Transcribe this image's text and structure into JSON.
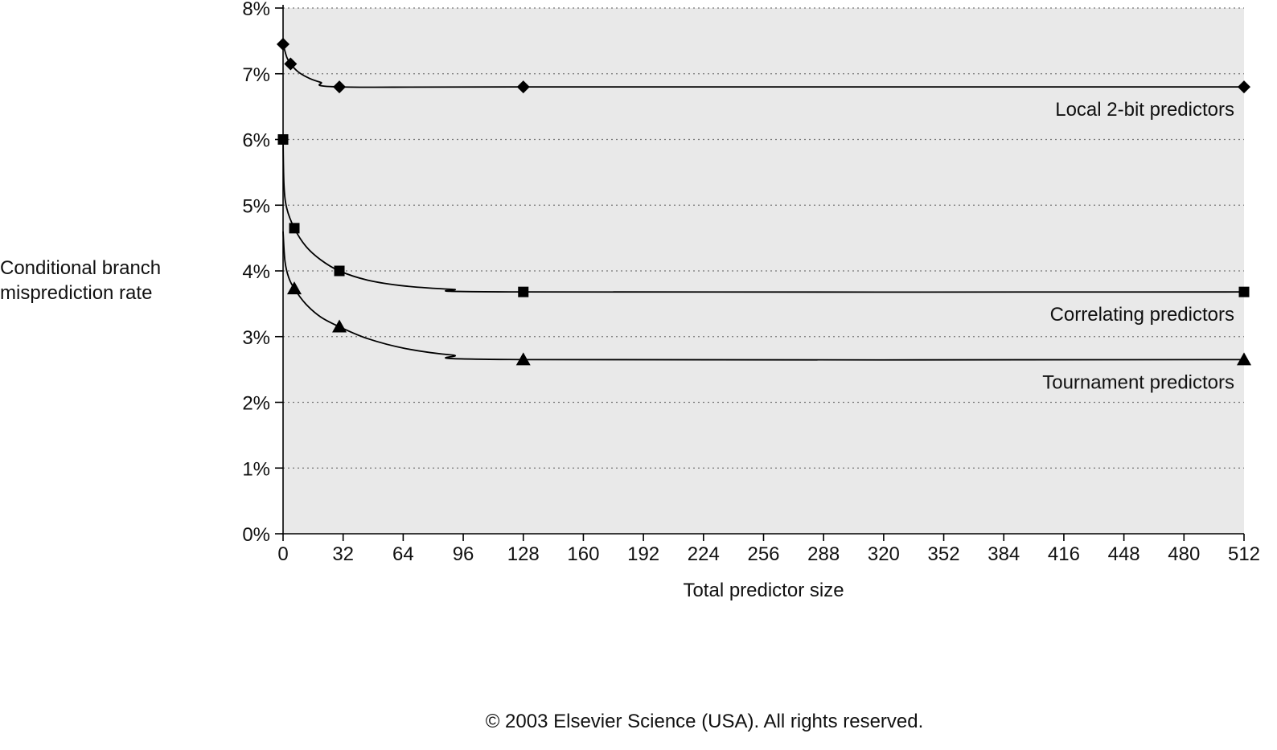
{
  "chart_data": {
    "type": "line",
    "title": "",
    "xlabel": "Total predictor size",
    "ylabel_lines": [
      "Conditional branch",
      "misprediction rate"
    ],
    "xlim": [
      0,
      512
    ],
    "ylim": [
      0,
      8
    ],
    "x_ticks": [
      0,
      32,
      64,
      96,
      128,
      160,
      192,
      224,
      256,
      288,
      320,
      352,
      384,
      416,
      448,
      480,
      512
    ],
    "x_tick_labels": [
      "0",
      "32",
      "64",
      "96",
      "128",
      "160",
      "192",
      "224",
      "256",
      "288",
      "320",
      "352",
      "384",
      "416",
      "448",
      "480",
      "512"
    ],
    "y_ticks": [
      0,
      1,
      2,
      3,
      4,
      5,
      6,
      7,
      8
    ],
    "y_tick_labels": [
      "0%",
      "1%",
      "2%",
      "3%",
      "4%",
      "5%",
      "6%",
      "7%",
      "8%"
    ],
    "grid": "horizontal dotted",
    "series": [
      {
        "name": "Local 2-bit predictors",
        "marker": "diamond",
        "points": [
          [
            0,
            7.45
          ],
          [
            4,
            7.15
          ],
          [
            30,
            6.8
          ],
          [
            128,
            6.8
          ],
          [
            512,
            6.8
          ]
        ],
        "curve": [
          [
            0,
            7.45
          ],
          [
            2,
            7.25
          ],
          [
            4,
            7.15
          ],
          [
            8,
            7.03
          ],
          [
            14,
            6.93
          ],
          [
            20,
            6.87
          ],
          [
            30,
            6.8
          ],
          [
            128,
            6.8
          ],
          [
            512,
            6.8
          ]
        ]
      },
      {
        "name": "Correlating predictors",
        "marker": "square",
        "points": [
          [
            0,
            6.0
          ],
          [
            6,
            4.65
          ],
          [
            30,
            4.0
          ],
          [
            128,
            3.68
          ],
          [
            512,
            3.68
          ]
        ],
        "curve": [
          [
            0,
            6.0
          ],
          [
            0.5,
            5.3
          ],
          [
            2,
            4.95
          ],
          [
            6,
            4.65
          ],
          [
            12,
            4.38
          ],
          [
            20,
            4.17
          ],
          [
            30,
            4.0
          ],
          [
            45,
            3.86
          ],
          [
            65,
            3.77
          ],
          [
            90,
            3.72
          ],
          [
            128,
            3.68
          ],
          [
            512,
            3.68
          ]
        ]
      },
      {
        "name": "Tournament predictors",
        "marker": "triangle",
        "points": [
          [
            6,
            3.73
          ],
          [
            30,
            3.15
          ],
          [
            128,
            2.65
          ],
          [
            512,
            2.65
          ]
        ],
        "curve": [
          [
            0,
            4.6
          ],
          [
            1,
            4.15
          ],
          [
            3,
            3.9
          ],
          [
            6,
            3.73
          ],
          [
            12,
            3.5
          ],
          [
            20,
            3.3
          ],
          [
            30,
            3.15
          ],
          [
            45,
            2.97
          ],
          [
            65,
            2.82
          ],
          [
            90,
            2.72
          ],
          [
            128,
            2.65
          ],
          [
            512,
            2.65
          ]
        ]
      }
    ],
    "colors": {
      "plot_background": "#e9e9e9",
      "line": "#000000",
      "grid": "#777777"
    }
  },
  "copyright": "© 2003 Elsevier Science (USA). All rights reserved."
}
